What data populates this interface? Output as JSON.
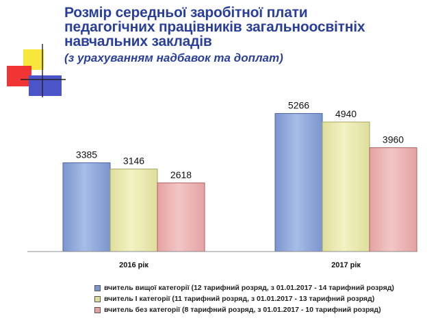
{
  "title": {
    "line1": "Розмір середньої заробітної плати",
    "line2": "педагогічних працівників загальноосвітніх",
    "line3": "навчальних закладів",
    "subtitle": "(з урахуванням надбавок та доплат)"
  },
  "colors": {
    "title": "#2a3f9c",
    "series": [
      "#7b96cf",
      "#dede9c",
      "#e4a2a2"
    ],
    "series_dark": [
      "#4a64a8",
      "#a5a55e",
      "#b05e5e"
    ],
    "series_light": [
      "#a8bce6",
      "#f2f2c4",
      "#f3c6c6"
    ]
  },
  "chart_data": {
    "type": "bar",
    "categories": [
      "2016 рік",
      "2017 рік"
    ],
    "series": [
      {
        "name": "вчитель вищої категорії (12 тарифний розряд, з 01.01.2017 - 14 тарифний розряд)",
        "values": [
          3385,
          5266
        ]
      },
      {
        "name": "вчитель І категорії (11 тарифний розряд, з 01.01.2017 - 13 тарифний розряд)",
        "values": [
          3146,
          4940
        ]
      },
      {
        "name": "вчитель без категорії (8 тарифний розряд, з 01.01.2017 - 10 тарифний розряд)",
        "values": [
          2618,
          3960
        ]
      }
    ],
    "title": "Розмір середньої заробітної плати педагогічних працівників загальноосвітніх навчальних закладів",
    "subtitle": "(з урахуванням надбавок та доплат)",
    "xlabel": "",
    "ylabel": "",
    "ylim": [
      0,
      6300
    ],
    "grid": false,
    "legend_position": "bottom",
    "data_labels": true
  }
}
